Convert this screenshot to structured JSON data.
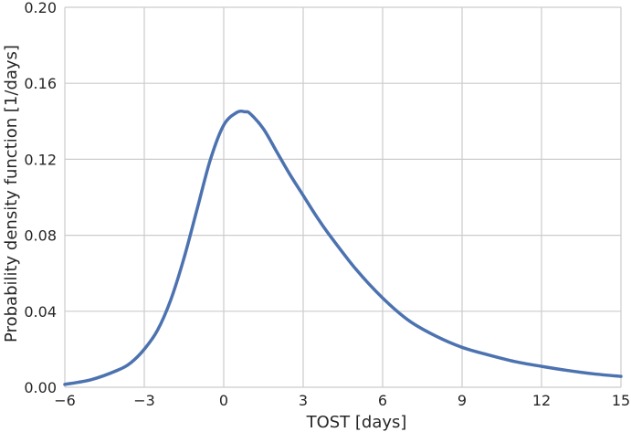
{
  "chart_data": {
    "type": "line",
    "title": "",
    "xlabel": "TOST [days]",
    "ylabel": "Probability density function [1/days]",
    "xlim": [
      -6,
      15
    ],
    "ylim": [
      0,
      0.2
    ],
    "grid": true,
    "x_ticks": [
      -6,
      -3,
      0,
      3,
      6,
      9,
      12,
      15
    ],
    "x_tick_labels": [
      "−6",
      "−3",
      "0",
      "3",
      "6",
      "9",
      "12",
      "15"
    ],
    "y_ticks": [
      0,
      0.04,
      0.08,
      0.12,
      0.16,
      0.2
    ],
    "y_tick_labels": [
      "0.00",
      "0.04",
      "0.08",
      "0.12",
      "0.16",
      "0.20"
    ],
    "series": [
      {
        "color": "#4c72b0",
        "x": [
          -6,
          -5,
          -4,
          -3.5,
          -3,
          -2.5,
          -2,
          -1.5,
          -1,
          -0.5,
          0,
          0.5,
          0.8,
          1,
          1.5,
          2,
          2.5,
          3,
          3.5,
          4,
          5,
          6,
          7,
          8,
          9,
          10,
          11,
          12,
          13,
          14,
          15
        ],
        "y": [
          0.0015,
          0.004,
          0.009,
          0.013,
          0.02,
          0.03,
          0.046,
          0.068,
          0.094,
          0.12,
          0.138,
          0.1447,
          0.145,
          0.144,
          0.136,
          0.124,
          0.112,
          0.101,
          0.09,
          0.08,
          0.062,
          0.047,
          0.035,
          0.027,
          0.021,
          0.017,
          0.0135,
          0.011,
          0.0088,
          0.007,
          0.0057
        ]
      }
    ]
  }
}
